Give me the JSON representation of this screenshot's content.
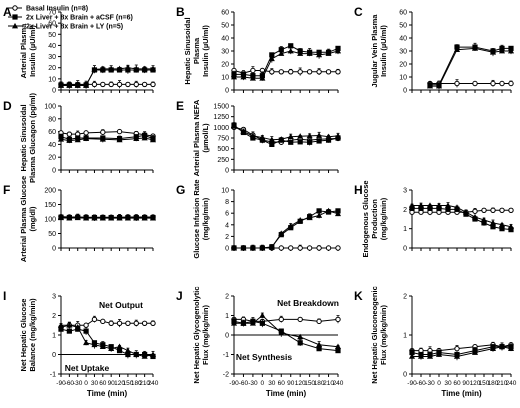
{
  "figure": {
    "legend": [
      {
        "label": "Basal Insulin (n=8)",
        "marker": "open-circle"
      },
      {
        "label": "2x Liver + 8x Brain + aCSF (n=6)",
        "marker": "filled-square"
      },
      {
        "label": "2x Liver + 8x Brain + LY (n=5)",
        "marker": "filled-triangle"
      }
    ],
    "colors": {
      "ink": "#000000",
      "open_fill": "#ffffff",
      "filled": "#000000"
    }
  },
  "chart_data": [
    {
      "letter": "A",
      "type": "line",
      "ylabel": [
        "Arterial Plasma",
        "Insulin (µU/ml)"
      ],
      "xlabel": "",
      "xlim": [
        -90,
        240
      ],
      "ylim": [
        0,
        70
      ],
      "yticks": [
        0,
        10,
        20,
        30,
        40,
        50,
        60,
        70
      ],
      "xticks": [
        -90,
        -60,
        -30,
        0,
        30,
        60,
        90,
        120,
        150,
        180,
        210,
        240
      ],
      "xtick_labels": false,
      "x": [
        -90,
        -60,
        -30,
        0,
        30,
        60,
        90,
        120,
        150,
        180,
        210,
        240
      ],
      "series": [
        {
          "name": "Basal Insulin (n=8)",
          "values": [
            5,
            5,
            5,
            5,
            5,
            5,
            5,
            5,
            5,
            5,
            5,
            5
          ]
        },
        {
          "name": "2x Liver + 8x Brain + aCSF (n=6)",
          "values": [
            4.5,
            4.5,
            4.5,
            4.5,
            18,
            18,
            18,
            18,
            18,
            18,
            18,
            18
          ]
        },
        {
          "name": "2x Liver + 8x Brain + LY (n=5)",
          "values": [
            4,
            4,
            4,
            4,
            18.5,
            19,
            19,
            19,
            20,
            19,
            19,
            19
          ]
        }
      ]
    },
    {
      "letter": "B",
      "type": "line",
      "ylabel": [
        "Hepatic Sinusoidal",
        "Plasma",
        "Insulin (µU/ml)"
      ],
      "xlabel": "",
      "xlim": [
        -90,
        240
      ],
      "ylim": [
        0,
        60
      ],
      "yticks": [
        0,
        10,
        20,
        30,
        40,
        50,
        60
      ],
      "xticks": [
        -90,
        -60,
        -30,
        0,
        30,
        60,
        90,
        120,
        150,
        180,
        210,
        240
      ],
      "xtick_labels": false,
      "x": [
        -90,
        -60,
        -30,
        0,
        30,
        60,
        90,
        120,
        150,
        180,
        210,
        240
      ],
      "series": [
        {
          "name": "Basal Insulin (n=8)",
          "values": [
            15,
            13,
            15,
            15,
            14,
            14,
            14,
            14,
            14,
            14,
            14,
            14
          ]
        },
        {
          "name": "2x Liver + 8x Brain + aCSF (n=6)",
          "values": [
            12,
            12,
            11,
            11,
            27,
            31,
            34,
            30,
            29,
            29,
            29,
            32
          ]
        },
        {
          "name": "2x Liver + 8x Brain + LY (n=5)",
          "values": [
            10,
            10,
            9,
            9,
            24,
            28,
            30,
            28,
            28,
            27,
            28,
            30
          ]
        }
      ]
    },
    {
      "letter": "C",
      "type": "line",
      "ylabel": [
        "Jugular Vein Plasma",
        "Insulin (µU/ml)"
      ],
      "xlabel": "",
      "xlim": [
        -90,
        240
      ],
      "ylim": [
        0,
        60
      ],
      "yticks": [
        0,
        10,
        20,
        30,
        40,
        50,
        60
      ],
      "xticks": [
        -90,
        -60,
        -30,
        0,
        30,
        60,
        90,
        120,
        150,
        180,
        210,
        240
      ],
      "xtick_labels": false,
      "x": [
        -30,
        0,
        60,
        120,
        180,
        210,
        240
      ],
      "series": [
        {
          "name": "Basal Insulin (n=8)",
          "values": [
            5,
            5,
            5,
            5,
            5,
            5,
            5
          ]
        },
        {
          "name": "2x Liver + 8x Brain + aCSF (n=6)",
          "values": [
            4,
            4,
            33,
            33,
            30,
            32,
            32
          ]
        },
        {
          "name": "2x Liver + 8x Brain + LY (n=5)",
          "values": [
            3,
            3,
            31,
            32,
            29,
            30,
            30
          ]
        }
      ]
    },
    {
      "letter": "D",
      "type": "line",
      "ylabel": [
        "Hepatic Sinusoidal",
        "Plasma Glucagon (pg/ml)"
      ],
      "xlabel": "",
      "xlim": [
        -90,
        240
      ],
      "ylim": [
        0,
        100
      ],
      "yticks": [
        0,
        20,
        40,
        60,
        80,
        100
      ],
      "xticks": [
        -90,
        -60,
        -30,
        0,
        30,
        60,
        90,
        120,
        150,
        180,
        210,
        240
      ],
      "xtick_labels": false,
      "x": [
        -90,
        -60,
        -30,
        0,
        60,
        120,
        180,
        210,
        240
      ],
      "series": [
        {
          "name": "Basal Insulin (n=8)",
          "values": [
            58,
            56,
            56,
            58,
            59,
            60,
            57,
            55,
            53
          ]
        },
        {
          "name": "2x Liver + 8x Brain + aCSF (n=6)",
          "values": [
            52,
            48,
            50,
            50,
            50,
            49,
            52,
            54,
            49
          ]
        },
        {
          "name": "2x Liver + 8x Brain + LY (n=5)",
          "values": [
            48,
            46,
            47,
            49,
            48,
            47,
            49,
            50,
            47
          ]
        }
      ]
    },
    {
      "letter": "E",
      "type": "line",
      "ylabel": [
        "Arterial Plasma NEFA",
        "(µmol/L)"
      ],
      "xlabel": "",
      "xlim": [
        -90,
        240
      ],
      "ylim": [
        0,
        1500
      ],
      "yticks": [
        0,
        250,
        500,
        750,
        1000,
        1250,
        1500
      ],
      "xticks": [
        -90,
        -60,
        -30,
        0,
        30,
        60,
        90,
        120,
        150,
        180,
        210,
        240
      ],
      "xtick_labels": false,
      "x": [
        -90,
        -60,
        -30,
        0,
        30,
        60,
        90,
        120,
        150,
        180,
        210,
        240
      ],
      "series": [
        {
          "name": "Basal Insulin (n=8)",
          "values": [
            1000,
            950,
            820,
            700,
            660,
            650,
            700,
            720,
            700,
            720,
            730,
            740
          ]
        },
        {
          "name": "2x Liver + 8x Brain + aCSF (n=6)",
          "values": [
            1050,
            880,
            750,
            700,
            600,
            700,
            650,
            660,
            650,
            680,
            700,
            750
          ]
        },
        {
          "name": "2x Liver + 8x Brain + LY (n=5)",
          "values": [
            1020,
            900,
            800,
            760,
            710,
            720,
            780,
            790,
            800,
            810,
            780,
            800
          ]
        }
      ]
    },
    {
      "letter": "F",
      "type": "line",
      "ylabel": [
        "Arterial Plasma Glucose",
        "(mg/dl)"
      ],
      "xlabel": "",
      "xlim": [
        -90,
        240
      ],
      "ylim": [
        0,
        200
      ],
      "yticks": [
        0,
        50,
        100,
        150,
        200
      ],
      "xticks": [
        -90,
        -60,
        -30,
        0,
        30,
        60,
        90,
        120,
        150,
        180,
        210,
        240
      ],
      "xtick_labels": false,
      "x": [
        -90,
        -60,
        -30,
        0,
        30,
        60,
        90,
        120,
        150,
        180,
        210,
        240
      ],
      "series": [
        {
          "name": "Basal Insulin (n=8)",
          "values": [
            108,
            107,
            107,
            106,
            106,
            106,
            106,
            106,
            107,
            107,
            107,
            107
          ]
        },
        {
          "name": "2x Liver + 8x Brain + aCSF (n=6)",
          "values": [
            106,
            105,
            106,
            105,
            105,
            105,
            105,
            105,
            105,
            105,
            105,
            105
          ]
        },
        {
          "name": "2x Liver + 8x Brain + LY (n=5)",
          "values": [
            104,
            103,
            104,
            103,
            103,
            103,
            103,
            103,
            103,
            103,
            103,
            103
          ]
        }
      ]
    },
    {
      "letter": "G",
      "type": "line",
      "ylabel": [
        "Glucose Infusion Rate",
        "(mg/kg/min)"
      ],
      "xlabel": "",
      "xlim": [
        -90,
        240
      ],
      "ylim": [
        0,
        10
      ],
      "yticks": [
        0,
        2,
        4,
        6,
        8,
        10
      ],
      "xticks": [
        -90,
        -60,
        -30,
        0,
        30,
        60,
        90,
        120,
        150,
        180,
        210,
        240
      ],
      "xtick_labels": false,
      "x": [
        -90,
        -60,
        -30,
        0,
        30,
        60,
        90,
        120,
        150,
        180,
        210,
        240
      ],
      "series": [
        {
          "name": "Basal Insulin (n=8)",
          "values": [
            0,
            0,
            0,
            0,
            0,
            0,
            0,
            0,
            0,
            0,
            0,
            0
          ]
        },
        {
          "name": "2x Liver + 8x Brain + aCSF (n=6)",
          "values": [
            0,
            0,
            0,
            0,
            0.2,
            2.3,
            3.5,
            4.6,
            5.4,
            6.4,
            6.2,
            6.4
          ]
        },
        {
          "name": "2x Liver + 8x Brain + LY (n=5)",
          "values": [
            0,
            0,
            0,
            0,
            0.1,
            2.5,
            3.8,
            4.8,
            5.2,
            5.6,
            6.4,
            5.9
          ]
        }
      ]
    },
    {
      "letter": "H",
      "type": "line",
      "ylabel": [
        "Endogenous Glucose",
        "Production",
        "(mg/kg/min)"
      ],
      "xlabel": "",
      "xlim": [
        -90,
        240
      ],
      "ylim": [
        0,
        3
      ],
      "yticks": [
        0,
        1,
        2,
        3
      ],
      "xticks": [
        -90,
        -60,
        -30,
        0,
        30,
        60,
        90,
        120,
        150,
        180,
        210,
        240
      ],
      "xtick_labels": false,
      "x": [
        -90,
        -60,
        -30,
        0,
        30,
        60,
        90,
        120,
        150,
        180,
        210,
        240
      ],
      "series": [
        {
          "name": "Basal Insulin (n=8)",
          "values": [
            1.85,
            1.85,
            1.85,
            1.85,
            1.85,
            1.85,
            1.85,
            1.9,
            1.95,
            1.95,
            1.95,
            1.95
          ]
        },
        {
          "name": "2x Liver + 8x Brain + aCSF (n=6)",
          "values": [
            2.05,
            2.05,
            2.05,
            2.05,
            2.0,
            2.0,
            1.75,
            1.5,
            1.3,
            1.1,
            1.0,
            0.95
          ]
        },
        {
          "name": "2x Liver + 8x Brain + LY (n=5)",
          "values": [
            2.2,
            2.2,
            2.2,
            2.2,
            2.2,
            2.1,
            1.85,
            1.6,
            1.45,
            1.3,
            1.2,
            1.1
          ]
        }
      ]
    },
    {
      "letter": "I",
      "type": "line",
      "ylabel": [
        "Net Hepatic Glucose",
        "Balance (mg/kg/min)"
      ],
      "xlabel": "Time (min)",
      "xlim": [
        -90,
        240
      ],
      "ylim": [
        -1,
        3
      ],
      "yticks": [
        -1,
        0,
        1,
        2,
        3
      ],
      "zero_line": true,
      "xticks": [
        -90,
        -60,
        -30,
        0,
        30,
        60,
        90,
        120,
        150,
        180,
        210,
        240
      ],
      "xtick_labels": true,
      "annotations": [
        {
          "text": "Net Output"
        },
        {
          "text": "Net Uptake"
        }
      ],
      "x": [
        -90,
        -60,
        -30,
        0,
        30,
        60,
        90,
        120,
        150,
        180,
        210,
        240
      ],
      "series": [
        {
          "name": "Basal Insulin (n=8)",
          "values": [
            1.4,
            1.5,
            1.5,
            1.5,
            1.8,
            1.7,
            1.6,
            1.6,
            1.6,
            1.6,
            1.6,
            1.6
          ]
        },
        {
          "name": "2x Liver + 8x Brain + aCSF (n=6)",
          "values": [
            1.3,
            1.2,
            1.3,
            1.2,
            0.6,
            0.5,
            0.4,
            0.2,
            0.0,
            0.0,
            0.0,
            -0.1
          ]
        },
        {
          "name": "2x Liver + 8x Brain + LY (n=5)",
          "values": [
            1.5,
            1.5,
            1.4,
            0.6,
            0.5,
            0.4,
            0.3,
            0.4,
            0.2,
            0.0,
            -0.1,
            0.0
          ]
        }
      ]
    },
    {
      "letter": "J",
      "type": "line",
      "ylabel": [
        "Net Hepatic Glycogenolytic",
        "Flux (mg/kg/min)"
      ],
      "xlabel": "Time (min)",
      "xlim": [
        -90,
        240
      ],
      "ylim": [
        -2,
        2
      ],
      "yticks": [
        -2,
        -1,
        0,
        1,
        2
      ],
      "zero_line": true,
      "xticks": [
        -90,
        -60,
        -30,
        0,
        30,
        60,
        90,
        120,
        150,
        180,
        210,
        240
      ],
      "xtick_labels": true,
      "annotations": [
        {
          "text": "Net Breakdown"
        },
        {
          "text": "Net Synthesis"
        }
      ],
      "x": [
        -90,
        -60,
        -30,
        0,
        60,
        120,
        180,
        240
      ],
      "series": [
        {
          "name": "Basal Insulin (n=8)",
          "values": [
            0.8,
            0.8,
            0.7,
            0.7,
            0.8,
            0.8,
            0.7,
            0.8
          ]
        },
        {
          "name": "2x Liver + 8x Brain + aCSF (n=6)",
          "values": [
            0.7,
            0.6,
            0.7,
            0.6,
            0.2,
            -0.4,
            -0.7,
            -0.8
          ]
        },
        {
          "name": "2x Liver + 8x Brain + LY (n=5)",
          "values": [
            0.6,
            0.6,
            0.6,
            1.0,
            0.1,
            -0.1,
            -0.5,
            -0.6
          ]
        }
      ]
    },
    {
      "letter": "K",
      "type": "line",
      "ylabel": [
        "Net Hepatic Gluconeogenic",
        "Flux (mg/kg/min)"
      ],
      "xlabel": "Time (min)",
      "xlim": [
        -90,
        240
      ],
      "ylim": [
        0,
        2
      ],
      "yticks": [
        0,
        1,
        2
      ],
      "xticks": [
        -90,
        -60,
        -30,
        0,
        30,
        60,
        90,
        120,
        150,
        180,
        210,
        240
      ],
      "xtick_labels": true,
      "x": [
        -90,
        -60,
        -30,
        0,
        60,
        120,
        180,
        210,
        240
      ],
      "series": [
        {
          "name": "Basal Insulin (n=8)",
          "values": [
            0.6,
            0.6,
            0.6,
            0.6,
            0.65,
            0.7,
            0.75,
            0.7,
            0.75
          ]
        },
        {
          "name": "2x Liver + 8x Brain + aCSF (n=6)",
          "values": [
            0.55,
            0.5,
            0.5,
            0.55,
            0.5,
            0.6,
            0.7,
            0.7,
            0.7
          ]
        },
        {
          "name": "2x Liver + 8x Brain + LY (n=5)",
          "values": [
            0.45,
            0.45,
            0.45,
            0.5,
            0.45,
            0.55,
            0.65,
            0.7,
            0.65
          ]
        }
      ]
    }
  ]
}
